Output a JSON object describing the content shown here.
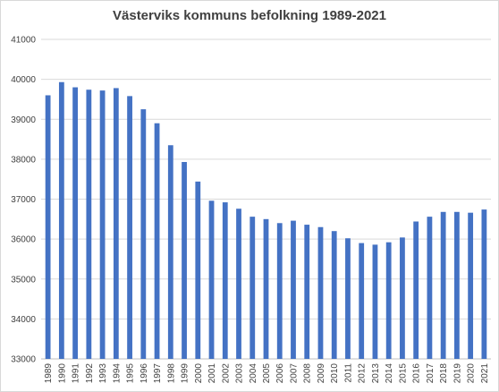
{
  "chart_data": {
    "type": "bar",
    "title": "Västerviks kommuns befolkning 1989-2021",
    "xlabel": "",
    "ylabel": "",
    "ylim": [
      33000,
      41000
    ],
    "y_ticks": [
      "33000",
      "34000",
      "35000",
      "36000",
      "37000",
      "38000",
      "39000",
      "40000",
      "41000"
    ],
    "grid": "horizontal",
    "legend": "none",
    "color": "#4472C4",
    "categories": [
      "1989",
      "1990",
      "1991",
      "1992",
      "1993",
      "1994",
      "1995",
      "1996",
      "1997",
      "1998",
      "1999",
      "2000",
      "2001",
      "2002",
      "2003",
      "2004",
      "2005",
      "2006",
      "2007",
      "2008",
      "2009",
      "2010",
      "2011",
      "2012",
      "2013",
      "2014",
      "2015",
      "2016",
      "2017",
      "2018",
      "2019",
      "2020",
      "2021"
    ],
    "values": [
      39600,
      39930,
      39800,
      39740,
      39720,
      39780,
      39580,
      39250,
      38900,
      38350,
      37930,
      37440,
      36960,
      36920,
      36760,
      36560,
      36500,
      36400,
      36460,
      36360,
      36300,
      36200,
      36020,
      35900,
      35860,
      35920,
      36040,
      36440,
      36560,
      36680,
      36680,
      36660,
      36740
    ]
  }
}
